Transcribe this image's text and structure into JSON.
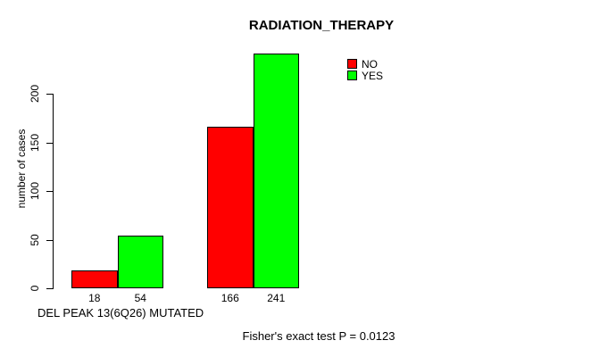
{
  "chart_data": {
    "type": "bar",
    "title": "RADIATION_THERAPY",
    "ylabel": "number of cases",
    "xlabel": "DEL PEAK 13(6Q26) MUTATED",
    "footnote": "Fisher's exact test P = 0.0123",
    "series": [
      {
        "name": "NO",
        "color": "#ff0000",
        "values": [
          18,
          166
        ]
      },
      {
        "name": "YES",
        "color": "#00ff00",
        "values": [
          54,
          241
        ]
      }
    ],
    "bar_value_labels_shown": true,
    "yticks": [
      0,
      50,
      100,
      150,
      200
    ],
    "ylim": [
      0,
      250
    ],
    "grid": false,
    "legend_position": "top-right",
    "axis_color": "#000000",
    "background_color": "#ffffff"
  }
}
